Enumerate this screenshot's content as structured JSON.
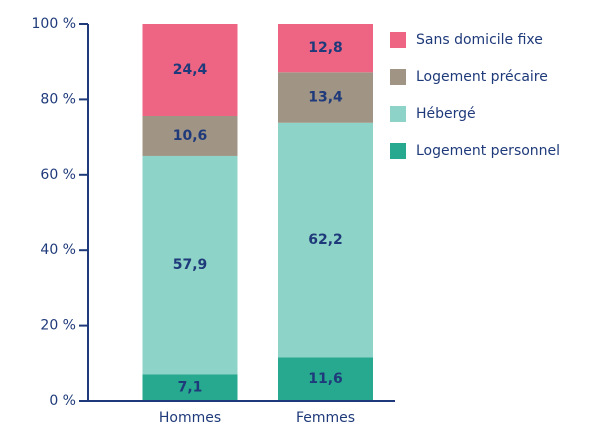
{
  "chart_data": {
    "type": "stacked_bar",
    "categories": [
      "Hommes",
      "Femmes"
    ],
    "series": [
      {
        "name": "Logement personnel",
        "color": "#26a98f",
        "values": [
          7.1,
          11.6
        ],
        "value_labels": [
          "7,1",
          "11,6"
        ]
      },
      {
        "name": "Hébergé",
        "color": "#8dd3c7",
        "values": [
          57.9,
          62.2
        ],
        "value_labels": [
          "57,9",
          "62,2"
        ]
      },
      {
        "name": "Logement précaire",
        "color": "#a09485",
        "values": [
          10.6,
          13.4
        ],
        "value_labels": [
          "10,6",
          "13,4"
        ]
      },
      {
        "name": "Sans domicile fixe",
        "color": "#ee6584",
        "values": [
          24.4,
          12.8
        ],
        "value_labels": [
          "24,4",
          "12,8"
        ]
      }
    ],
    "ylim": [
      0,
      100
    ],
    "yticks": [
      {
        "value": 0,
        "label": "0 %"
      },
      {
        "value": 20,
        "label": "20 %"
      },
      {
        "value": 40,
        "label": "40 %"
      },
      {
        "value": 60,
        "label": "60 %"
      },
      {
        "value": 80,
        "label": "80 %"
      },
      {
        "value": 100,
        "label": "100 %"
      }
    ],
    "legend": "right"
  }
}
